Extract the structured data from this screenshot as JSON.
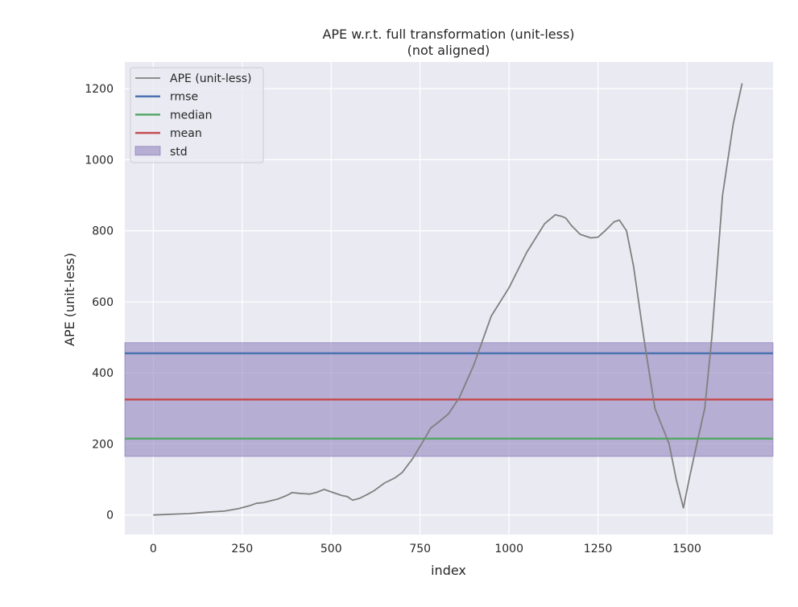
{
  "chart_data": {
    "type": "line",
    "title": "APE w.r.t. full transformation (unit-less)",
    "subtitle": "(not aligned)",
    "xlabel": "index",
    "ylabel": "APE (unit-less)",
    "xlim": [
      -80,
      1742
    ],
    "ylim": [
      -55,
      1275
    ],
    "xticks": [
      0,
      250,
      500,
      750,
      1000,
      1250,
      1500
    ],
    "yticks": [
      0,
      200,
      400,
      600,
      800,
      1000,
      1200
    ],
    "grid": true,
    "legend_position": "top-left",
    "series": [
      {
        "name": "APE (unit-less)",
        "kind": "line",
        "color": "#808080",
        "x": [
          0,
          50,
          100,
          150,
          200,
          240,
          270,
          290,
          310,
          350,
          375,
          390,
          410,
          440,
          460,
          480,
          500,
          530,
          545,
          560,
          580,
          600,
          620,
          650,
          680,
          700,
          730,
          760,
          780,
          800,
          830,
          860,
          900,
          950,
          1000,
          1050,
          1100,
          1130,
          1150,
          1160,
          1175,
          1200,
          1230,
          1250,
          1270,
          1295,
          1310,
          1330,
          1350,
          1380,
          1410,
          1430,
          1450,
          1470,
          1490,
          1505,
          1530,
          1550,
          1570,
          1600,
          1630,
          1655
        ],
        "y": [
          0,
          2,
          4,
          8,
          11,
          18,
          26,
          33,
          35,
          45,
          55,
          63,
          61,
          59,
          64,
          72,
          65,
          55,
          52,
          42,
          47,
          57,
          68,
          90,
          105,
          120,
          160,
          210,
          245,
          260,
          285,
          330,
          420,
          560,
          640,
          740,
          820,
          845,
          840,
          835,
          815,
          790,
          780,
          782,
          800,
          825,
          830,
          800,
          700,
          490,
          300,
          250,
          200,
          100,
          20,
          95,
          210,
          300,
          500,
          900,
          1100,
          1215
        ]
      },
      {
        "name": "rmse",
        "kind": "hline",
        "value": 455,
        "color": "#4c72b0"
      },
      {
        "name": "median",
        "kind": "hline",
        "value": 215,
        "color": "#55a868"
      },
      {
        "name": "mean",
        "kind": "hline",
        "value": 325,
        "color": "#c44e52"
      },
      {
        "name": "std",
        "kind": "band",
        "range": [
          165,
          485
        ],
        "color": "#8172b3"
      }
    ]
  }
}
